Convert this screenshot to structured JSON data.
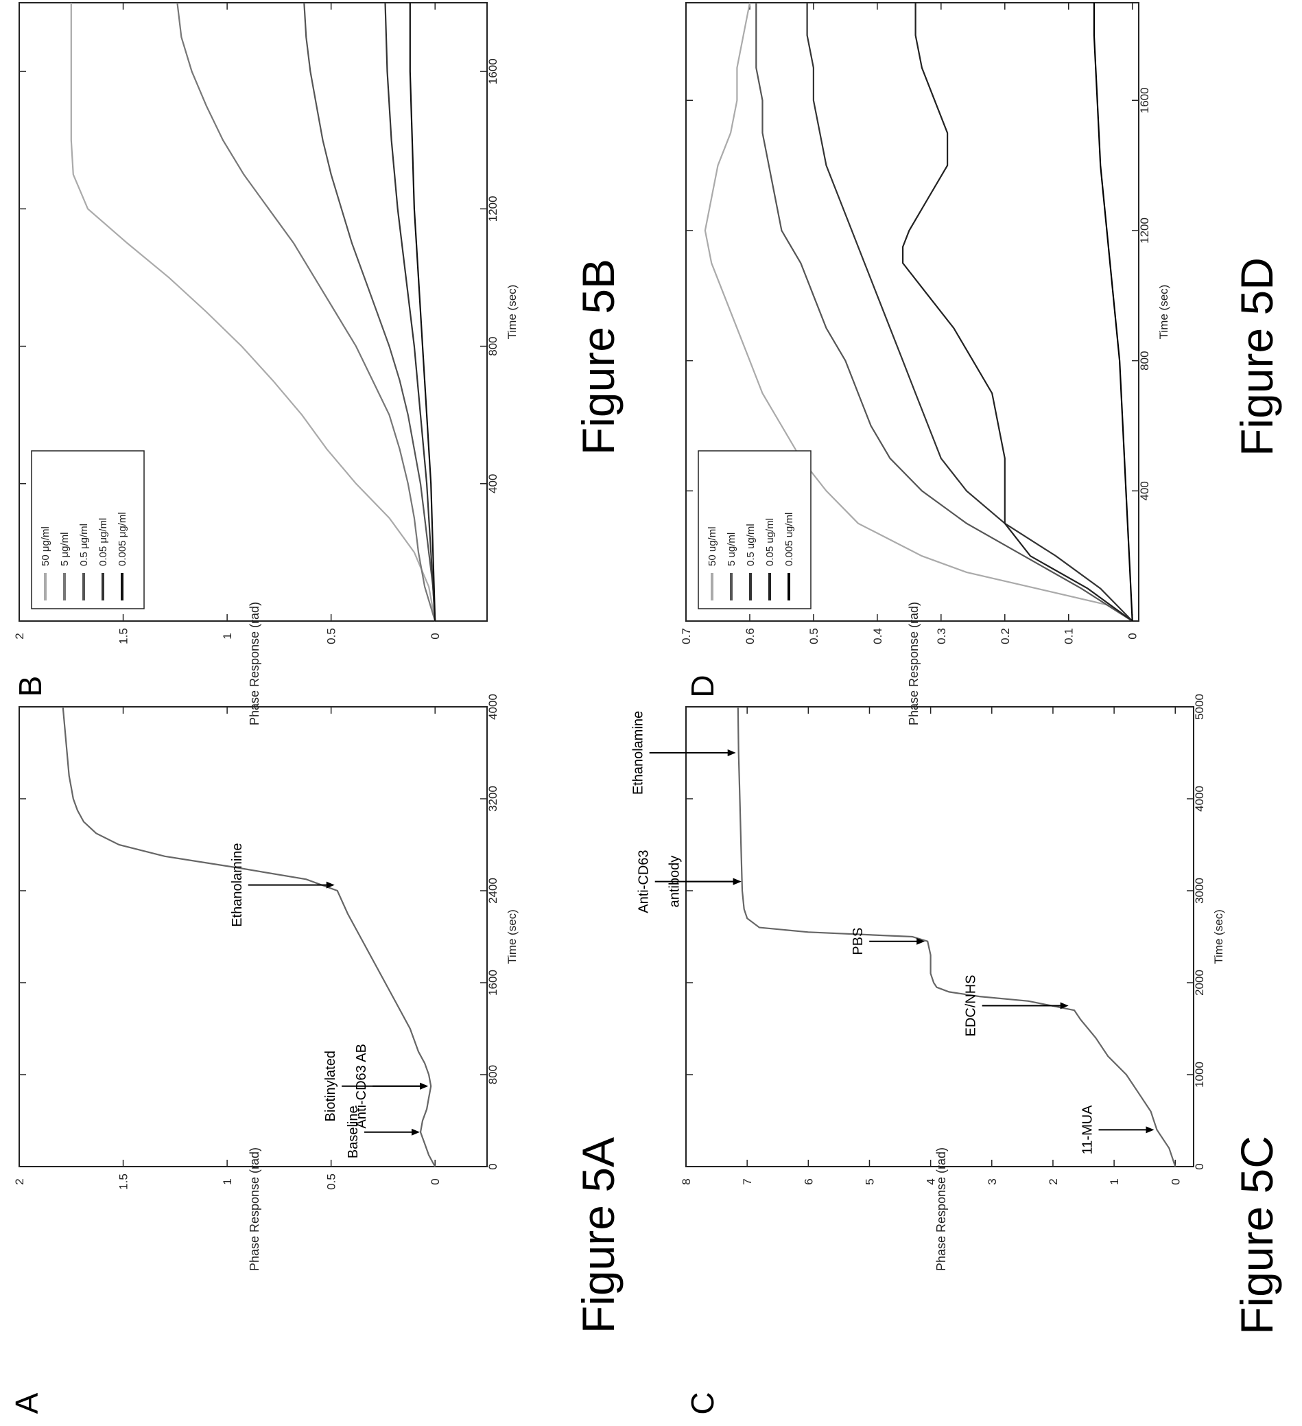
{
  "orientation": "rotated-90-ccw",
  "colors": {
    "axis": "#222222",
    "ink": "#333333"
  },
  "panels": [
    {
      "letter": "A",
      "figure_label": "Figure 5A",
      "chart_data": {
        "type": "line",
        "title": "",
        "xlabel": "Time (sec)",
        "ylabel": "Phase Response (rad)",
        "xlim": [
          0,
          4000
        ],
        "ylim": [
          -0.25,
          2
        ],
        "xticks": [
          0,
          800,
          1600,
          2400,
          3200,
          4000
        ],
        "yticks": [
          0,
          0.5,
          1,
          1.5,
          2
        ],
        "legend": null,
        "series": [
          {
            "name": "",
            "color": "#666666",
            "x": [
              0,
              100,
              200,
              300,
              400,
              500,
              600,
              700,
              800,
              900,
              1000,
              1200,
              1400,
              1600,
              1800,
              2000,
              2200,
              2400,
              2500,
              2600,
              2700,
              2800,
              2900,
              3000,
              3100,
              3200,
              3300,
              3400,
              3600,
              3800,
              4000
            ],
            "y": [
              0.0,
              0.03,
              0.05,
              0.07,
              0.06,
              0.04,
              0.03,
              0.02,
              0.03,
              0.05,
              0.08,
              0.12,
              0.18,
              0.24,
              0.3,
              0.36,
              0.42,
              0.47,
              0.62,
              0.95,
              1.3,
              1.52,
              1.63,
              1.69,
              1.72,
              1.74,
              1.75,
              1.76,
              1.77,
              1.78,
              1.79
            ]
          }
        ],
        "annotations": [
          {
            "text": "Baseline",
            "x": 300,
            "y": 0.06
          },
          {
            "text": "Biotinylated",
            "x": 700,
            "y": 0.02
          },
          {
            "text": "Anti-CD63 AB",
            "x": 700,
            "y": 0.02
          },
          {
            "text": "Ethanolamine",
            "x": 2450,
            "y": 0.47
          }
        ]
      }
    },
    {
      "letter": "B",
      "figure_label": "Figure 5B",
      "chart_data": {
        "type": "line",
        "title": "",
        "xlabel": "Time (sec)",
        "ylabel": "Phase Response (rad)",
        "xlim": [
          0,
          1800
        ],
        "ylim": [
          -0.25,
          2
        ],
        "xticks": [
          400,
          800,
          1200,
          1600
        ],
        "yticks": [
          0,
          0.5,
          1,
          1.5,
          2
        ],
        "legend": "top-left",
        "series": [
          {
            "name": "50 μg/ml",
            "color": "#aaaaaa",
            "x": [
              0,
              100,
              200,
              300,
              400,
              500,
              600,
              700,
              800,
              900,
              1000,
              1100,
              1200,
              1300,
              1400,
              1500,
              1600,
              1700,
              1800
            ],
            "y": [
              0.0,
              0.03,
              0.1,
              0.22,
              0.38,
              0.52,
              0.64,
              0.78,
              0.93,
              1.1,
              1.28,
              1.48,
              1.67,
              1.74,
              1.75,
              1.75,
              1.75,
              1.75,
              1.75
            ]
          },
          {
            "name": "5 μg/ml",
            "color": "#777777",
            "x": [
              0,
              100,
              200,
              300,
              400,
              500,
              600,
              700,
              800,
              900,
              1000,
              1100,
              1200,
              1300,
              1400,
              1500,
              1600,
              1700,
              1800
            ],
            "y": [
              0.0,
              0.05,
              0.08,
              0.1,
              0.13,
              0.17,
              0.22,
              0.3,
              0.38,
              0.48,
              0.58,
              0.68,
              0.8,
              0.92,
              1.02,
              1.1,
              1.17,
              1.22,
              1.24
            ]
          },
          {
            "name": "0.5 μg/ml",
            "color": "#555555",
            "x": [
              0,
              100,
              200,
              300,
              400,
              500,
              600,
              700,
              800,
              900,
              1000,
              1100,
              1200,
              1300,
              1400,
              1500,
              1600,
              1700,
              1800
            ],
            "y": [
              0.0,
              0.01,
              0.03,
              0.05,
              0.07,
              0.1,
              0.13,
              0.17,
              0.22,
              0.28,
              0.34,
              0.4,
              0.45,
              0.5,
              0.54,
              0.57,
              0.6,
              0.62,
              0.63
            ]
          },
          {
            "name": "0.05 μg/ml",
            "color": "#333333",
            "x": [
              0,
              200,
              400,
              600,
              800,
              1000,
              1200,
              1400,
              1600,
              1800
            ],
            "y": [
              0.0,
              0.02,
              0.04,
              0.07,
              0.1,
              0.14,
              0.18,
              0.21,
              0.23,
              0.24
            ]
          },
          {
            "name": "0.005 μg/ml",
            "color": "#111111",
            "x": [
              0,
              200,
              400,
              600,
              800,
              1000,
              1200,
              1400,
              1600,
              1800
            ],
            "y": [
              0.0,
              0.01,
              0.02,
              0.04,
              0.06,
              0.08,
              0.1,
              0.11,
              0.12,
              0.12
            ]
          }
        ]
      }
    },
    {
      "letter": "C",
      "figure_label": "Figure 5C",
      "chart_data": {
        "type": "line",
        "title": "",
        "xlabel": "Time (sec)",
        "ylabel": "Phase Response (rad)",
        "xlim": [
          0,
          5000
        ],
        "ylim": [
          -0.3,
          8
        ],
        "xticks": [
          0,
          1000,
          2000,
          3000,
          4000,
          5000
        ],
        "yticks": [
          0,
          1,
          2,
          3,
          4,
          5,
          6,
          7,
          8
        ],
        "legend": null,
        "series": [
          {
            "name": "",
            "color": "#666666",
            "x": [
              0,
              200,
              400,
              500,
              600,
              800,
              1000,
              1200,
              1400,
              1600,
              1700,
              1800,
              1850,
              1900,
              1950,
              2000,
              2100,
              2200,
              2300,
              2450,
              2500,
              2550,
              2600,
              2700,
              2800,
              3000,
              3500,
              4000,
              4500,
              5000
            ],
            "y": [
              0.0,
              0.1,
              0.3,
              0.35,
              0.4,
              0.6,
              0.8,
              1.1,
              1.3,
              1.55,
              1.65,
              2.4,
              3.2,
              3.7,
              3.9,
              3.95,
              4.0,
              4.0,
              4.0,
              4.05,
              4.3,
              6.0,
              6.8,
              7.0,
              7.05,
              7.08,
              7.1,
              7.12,
              7.14,
              7.15
            ]
          }
        ],
        "annotations": [
          {
            "text": "11-MUA",
            "x": 400,
            "y": 0.3
          },
          {
            "text": "EDC/NHS",
            "x": 1750,
            "y": 1.7
          },
          {
            "text": "PBS",
            "x": 2450,
            "y": 4.05
          },
          {
            "text": "Anti-CD63",
            "x": 3100,
            "y": 7.05
          },
          {
            "text": "antibody",
            "x": 3100,
            "y": 7.05
          },
          {
            "text": "Ethanolamine",
            "x": 4500,
            "y": 7.14
          }
        ]
      }
    },
    {
      "letter": "D",
      "figure_label": "Figure 5D",
      "chart_data": {
        "type": "line",
        "title": "",
        "xlabel": "Time (sec)",
        "ylabel": "Phase Response (rad)",
        "xlim": [
          0,
          1900
        ],
        "ylim": [
          -0.01,
          0.7
        ],
        "xticks": [
          400,
          800,
          1200,
          1600
        ],
        "yticks": [
          0,
          0.1,
          0.2,
          0.3,
          0.4,
          0.5,
          0.6,
          0.7
        ],
        "legend": "top-left",
        "series": [
          {
            "name": "50 ug/ml",
            "color": "#aaaaaa",
            "x": [
              0,
              50,
              100,
              150,
              200,
              300,
              400,
              500,
              600,
              700,
              800,
              900,
              1000,
              1100,
              1200,
              1300,
              1400,
              1500,
              1600,
              1700,
              1800,
              1900
            ],
            "y": [
              0.0,
              0.04,
              0.15,
              0.26,
              0.33,
              0.43,
              0.48,
              0.52,
              0.55,
              0.58,
              0.6,
              0.62,
              0.64,
              0.66,
              0.67,
              0.66,
              0.65,
              0.63,
              0.62,
              0.62,
              0.61,
              0.6
            ]
          },
          {
            "name": "5 ug/ml",
            "color": "#555555",
            "x": [
              0,
              100,
              200,
              300,
              400,
              500,
              600,
              700,
              800,
              900,
              1000,
              1100,
              1200,
              1300,
              1400,
              1500,
              1600,
              1700,
              1800,
              1900
            ],
            "y": [
              0.0,
              0.08,
              0.17,
              0.26,
              0.33,
              0.38,
              0.41,
              0.43,
              0.45,
              0.48,
              0.5,
              0.52,
              0.55,
              0.56,
              0.57,
              0.58,
              0.58,
              0.59,
              0.59,
              0.59
            ]
          },
          {
            "name": "0.5 ug/ml",
            "color": "#333333",
            "x": [
              0,
              100,
              200,
              300,
              400,
              500,
              600,
              700,
              800,
              900,
              1000,
              1100,
              1200,
              1300,
              1400,
              1500,
              1600,
              1700,
              1800,
              1900
            ],
            "y": [
              0.0,
              0.05,
              0.12,
              0.2,
              0.26,
              0.3,
              0.32,
              0.34,
              0.36,
              0.38,
              0.4,
              0.42,
              0.44,
              0.46,
              0.48,
              0.49,
              0.5,
              0.5,
              0.51,
              0.51
            ]
          },
          {
            "name": "0.05 ug/ml",
            "color": "#222222",
            "x": [
              0,
              100,
              200,
              300,
              400,
              500,
              600,
              700,
              800,
              900,
              1000,
              1100,
              1150,
              1200,
              1300,
              1400,
              1500,
              1600,
              1700,
              1800,
              1900
            ],
            "y": [
              0.0,
              0.07,
              0.16,
              0.2,
              0.2,
              0.2,
              0.21,
              0.22,
              0.25,
              0.28,
              0.32,
              0.36,
              0.36,
              0.35,
              0.32,
              0.29,
              0.29,
              0.31,
              0.33,
              0.34,
              0.34
            ]
          },
          {
            "name": "0.005 ug/ml",
            "color": "#000000",
            "x": [
              0,
              200,
              400,
              600,
              800,
              1000,
              1200,
              1400,
              1600,
              1800,
              1900
            ],
            "y": [
              0.0,
              0.005,
              0.01,
              0.015,
              0.02,
              0.03,
              0.04,
              0.05,
              0.055,
              0.06,
              0.06
            ]
          }
        ]
      }
    }
  ]
}
